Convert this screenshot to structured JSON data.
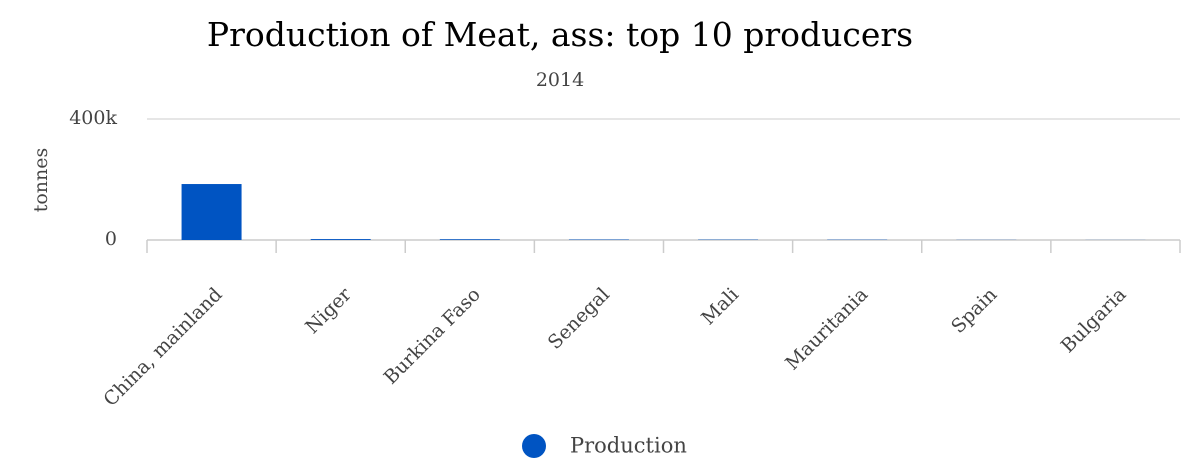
{
  "chart_data": {
    "type": "bar",
    "title": "Production of Meat, ass: top 10 producers",
    "subtitle": "2014",
    "y_label": "tonnes",
    "categories": [
      "China, mainland",
      "Niger",
      "Burkina Faso",
      "Senegal",
      "Mali",
      "Mauritania",
      "Spain",
      "Bulgaria"
    ],
    "series": [
      {
        "name": "Production",
        "color": "#0054c2",
        "values": [
          185000,
          3000,
          2500,
          1500,
          1200,
          1000,
          500,
          300
        ]
      }
    ],
    "ylim": [
      0,
      400000
    ],
    "yticks": [
      0,
      {
        "value": 400000,
        "label": "400k"
      }
    ],
    "grid": true
  }
}
